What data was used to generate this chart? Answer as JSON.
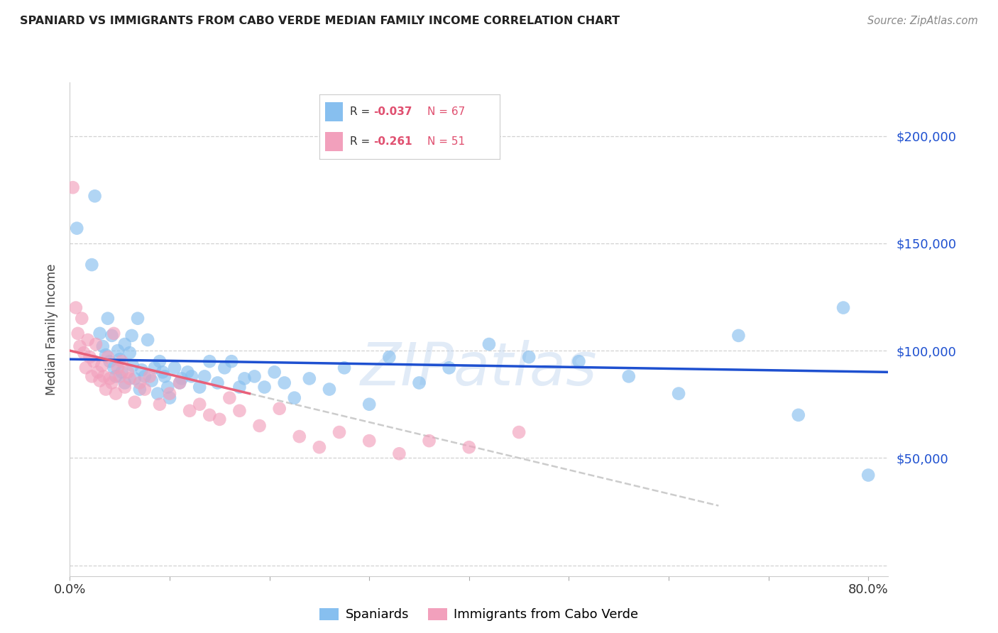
{
  "title": "SPANIARD VS IMMIGRANTS FROM CABO VERDE MEDIAN FAMILY INCOME CORRELATION CHART",
  "source": "Source: ZipAtlas.com",
  "ylabel": "Median Family Income",
  "xlim": [
    0.0,
    0.82
  ],
  "ylim": [
    -5000,
    225000
  ],
  "yticks": [
    0,
    50000,
    100000,
    150000,
    200000
  ],
  "color_blue": "#87BFEF",
  "color_pink": "#F2A0BC",
  "line_blue": "#1E50D0",
  "line_pink": "#E8607A",
  "line_gray": "#CCCCCC",
  "watermark_text": "ZIPatlas",
  "spaniards_x": [
    0.007,
    0.022,
    0.025,
    0.03,
    0.033,
    0.036,
    0.038,
    0.04,
    0.042,
    0.044,
    0.046,
    0.048,
    0.05,
    0.052,
    0.055,
    0.055,
    0.06,
    0.062,
    0.063,
    0.065,
    0.068,
    0.07,
    0.072,
    0.075,
    0.078,
    0.082,
    0.085,
    0.088,
    0.09,
    0.093,
    0.095,
    0.098,
    0.1,
    0.105,
    0.11,
    0.112,
    0.118,
    0.122,
    0.13,
    0.135,
    0.14,
    0.148,
    0.155,
    0.162,
    0.17,
    0.175,
    0.185,
    0.195,
    0.205,
    0.215,
    0.225,
    0.24,
    0.26,
    0.275,
    0.3,
    0.32,
    0.35,
    0.38,
    0.42,
    0.46,
    0.51,
    0.56,
    0.61,
    0.67,
    0.73,
    0.775,
    0.8
  ],
  "spaniards_y": [
    157000,
    140000,
    172000,
    108000,
    102000,
    98000,
    115000,
    95000,
    107000,
    92000,
    88000,
    100000,
    96000,
    90000,
    103000,
    85000,
    99000,
    107000,
    93000,
    87000,
    115000,
    82000,
    91000,
    88000,
    105000,
    86000,
    92000,
    80000,
    95000,
    90000,
    88000,
    83000,
    78000,
    92000,
    85000,
    87000,
    90000,
    88000,
    83000,
    88000,
    95000,
    85000,
    92000,
    95000,
    83000,
    87000,
    88000,
    83000,
    90000,
    85000,
    78000,
    87000,
    82000,
    92000,
    75000,
    97000,
    85000,
    92000,
    103000,
    97000,
    95000,
    88000,
    80000,
    107000,
    70000,
    120000,
    42000
  ],
  "caboverde_x": [
    0.003,
    0.006,
    0.008,
    0.01,
    0.012,
    0.014,
    0.016,
    0.018,
    0.02,
    0.022,
    0.024,
    0.026,
    0.028,
    0.03,
    0.032,
    0.034,
    0.036,
    0.038,
    0.04,
    0.042,
    0.044,
    0.046,
    0.048,
    0.05,
    0.052,
    0.055,
    0.058,
    0.06,
    0.065,
    0.07,
    0.075,
    0.08,
    0.09,
    0.1,
    0.11,
    0.12,
    0.13,
    0.14,
    0.15,
    0.16,
    0.17,
    0.19,
    0.21,
    0.23,
    0.25,
    0.27,
    0.3,
    0.33,
    0.36,
    0.4,
    0.45
  ],
  "caboverde_y": [
    176000,
    120000,
    108000,
    102000,
    115000,
    99000,
    92000,
    105000,
    97000,
    88000,
    95000,
    103000,
    90000,
    86000,
    93000,
    88000,
    82000,
    97000,
    87000,
    85000,
    108000,
    80000,
    92000,
    88000,
    95000,
    83000,
    90000,
    87000,
    76000,
    85000,
    82000,
    88000,
    75000,
    80000,
    85000,
    72000,
    75000,
    70000,
    68000,
    78000,
    72000,
    65000,
    73000,
    60000,
    55000,
    62000,
    58000,
    52000,
    58000,
    55000,
    62000
  ],
  "legend_r1_text": "R = ",
  "legend_r1_val": "-0.037",
  "legend_n1": "N = 67",
  "legend_r2_text": "R = ",
  "legend_r2_val": "-0.261",
  "legend_n2": "N = 51"
}
